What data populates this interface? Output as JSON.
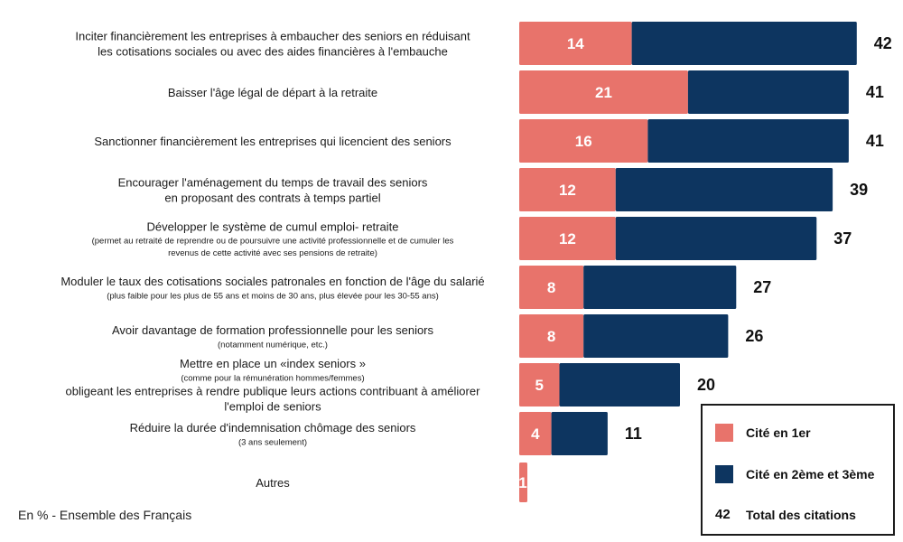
{
  "chart_data": {
    "type": "bar",
    "orientation": "horizontal",
    "stacked": true,
    "categories": [
      {
        "main": [
          "Inciter financièrement les entreprises à embaucher des seniors en réduisant",
          "les cotisations sociales ou avec des aides financières à l'embauche"
        ],
        "sub": []
      },
      {
        "main": [
          "Baisser l'âge légal de départ à la retraite"
        ],
        "sub": []
      },
      {
        "main": [
          "Sanctionner financièrement les entreprises qui licencient des seniors"
        ],
        "sub": []
      },
      {
        "main": [
          "Encourager l'aménagement du temps de travail des seniors",
          "en proposant des contrats à temps partiel"
        ],
        "sub": []
      },
      {
        "main": [
          "Développer le système de cumul emploi- retraite"
        ],
        "sub": [
          "(permet au retraité de reprendre ou de poursuivre une activité professionnelle et de cumuler les",
          "revenus de cette activité avec ses pensions de retraite)"
        ]
      },
      {
        "main": [
          "Moduler le taux des cotisations sociales patronales en fonction de l'âge du salarié"
        ],
        "sub": [
          "(plus faible pour les plus de 55 ans et moins de 30 ans, plus élevée pour les 30-55 ans)"
        ]
      },
      {
        "main": [
          "Avoir davantage de formation professionnelle pour les seniors"
        ],
        "sub": [
          "(notamment numérique, etc.)"
        ]
      },
      {
        "main": [
          "Mettre en place un «index seniors »"
        ],
        "sub": [
          "(comme pour la rémunération hommes/femmes)"
        ],
        "main2": [
          "obligeant les entreprises à rendre publique leurs actions contribuant à améliorer",
          "l'emploi de seniors"
        ]
      },
      {
        "main": [
          "Réduire la durée d'indemnisation chômage des seniors"
        ],
        "sub": [
          "(3 ans seulement)"
        ]
      },
      {
        "main": [
          "Autres"
        ],
        "sub": []
      }
    ],
    "series": [
      {
        "name": "Cité en 1er",
        "color": "#e8736b",
        "values": [
          14,
          21,
          16,
          12,
          12,
          8,
          8,
          5,
          4,
          1
        ]
      },
      {
        "name": "Cité en 2ème et 3ème",
        "color": "#0d3560",
        "values": [
          28,
          20,
          25,
          27,
          25,
          19,
          18,
          15,
          7,
          0
        ]
      }
    ],
    "segment_labels": [
      "14",
      "21",
      "16",
      "12",
      "12",
      "8",
      "8",
      "5",
      "4",
      "1"
    ],
    "totals": [
      42,
      41,
      41,
      39,
      37,
      27,
      26,
      20,
      11,
      null
    ],
    "total_labels": [
      "42",
      "41",
      "41",
      "39",
      "37",
      "27",
      "26",
      "20",
      "11",
      ""
    ],
    "xlim": [
      0,
      42
    ],
    "grid": false,
    "legend_position": "bottom-right"
  },
  "legend": {
    "first_label": "Cité en 1er",
    "second_label": "Cité en 2ème et 3ème",
    "total_example": "42",
    "total_label": "Total des citations"
  },
  "note": "En % - Ensemble des Français"
}
